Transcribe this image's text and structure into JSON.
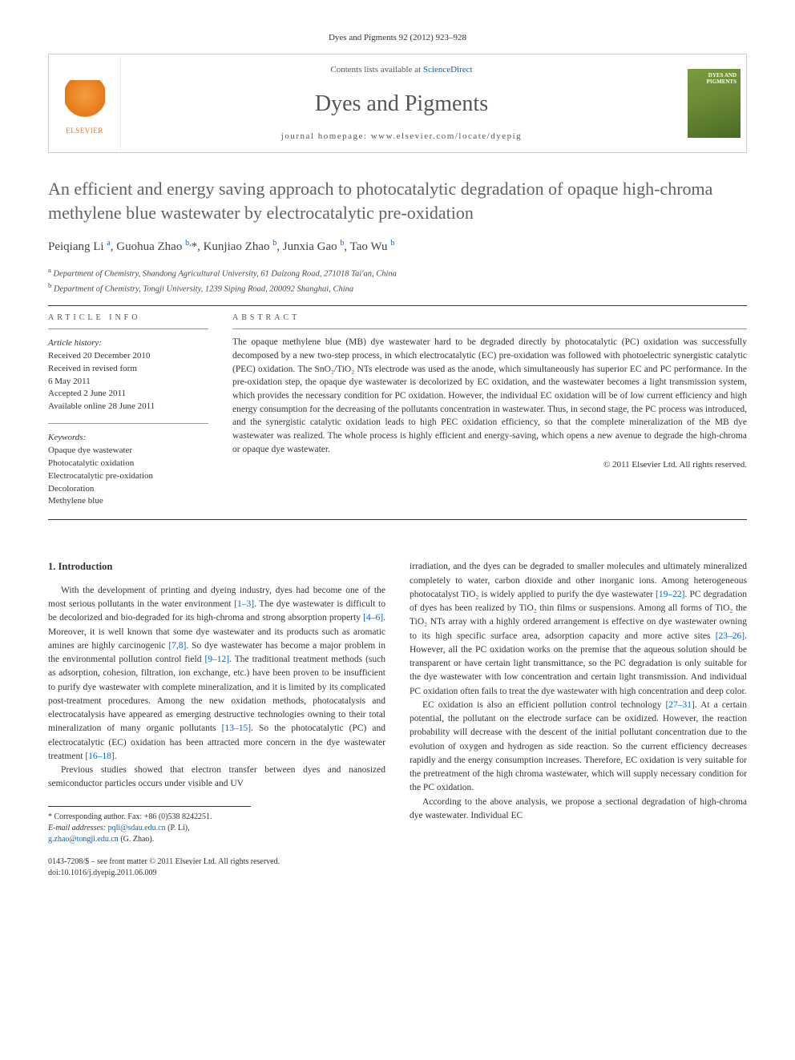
{
  "citation": "Dyes and Pigments 92 (2012) 923–928",
  "header": {
    "contents_prefix": "Contents lists available at ",
    "contents_link": "ScienceDirect",
    "journal": "Dyes and Pigments",
    "homepage": "journal homepage: www.elsevier.com/locate/dyepig",
    "publisher": "ELSEVIER",
    "cover_label": "DYES AND PIGMENTS"
  },
  "title": "An efficient and energy saving approach to photocatalytic degradation of opaque high-chroma methylene blue wastewater by electrocatalytic pre-oxidation",
  "authors_html": "Peiqiang Li <sup>a</sup>, Guohua Zhao <sup>b,</sup>*, Kunjiao Zhao <sup>b</sup>, Junxia Gao <sup>b</sup>, Tao Wu <sup>b</sup>",
  "affiliations": [
    {
      "sup": "a",
      "text": "Department of Chemistry, Shandong Agricultural University, 61 Daizong Road, 271018 Tai'an, China"
    },
    {
      "sup": "b",
      "text": "Department of Chemistry, Tongji University, 1239 Siping Road, 200092 Shanghai, China"
    }
  ],
  "info": {
    "head": "ARTICLE INFO",
    "history_label": "Article history:",
    "history": [
      "Received 20 December 2010",
      "Received in revised form",
      "6 May 2011",
      "Accepted 2 June 2011",
      "Available online 28 June 2011"
    ],
    "keywords_label": "Keywords:",
    "keywords": [
      "Opaque dye wastewater",
      "Photocatalytic oxidation",
      "Electrocatalytic pre-oxidation",
      "Decoloration",
      "Methylene blue"
    ]
  },
  "abstract": {
    "head": "ABSTRACT",
    "text": "The opaque methylene blue (MB) dye wastewater hard to be degraded directly by photocatalytic (PC) oxidation was successfully decomposed by a new two-step process, in which electrocatalytic (EC) pre-oxidation was followed with photoelectric synergistic catalytic (PEC) oxidation. The SnO₂/TiO₂ NTs electrode was used as the anode, which simultaneously has superior EC and PC performance. In the pre-oxidation step, the opaque dye wastewater is decolorized by EC oxidation, and the wastewater becomes a light transmission system, which provides the necessary condition for PC oxidation. However, the individual EC oxidation will be of low current efficiency and high energy consumption for the decreasing of the pollutants concentration in wastewater. Thus, in second stage, the PC process was introduced, and the synergistic catalytic oxidation leads to high PEC oxidation efficiency, so that the complete mineralization of the MB dye wastewater was realized. The whole process is highly efficient and energy-saving, which opens a new avenue to degrade the high-chroma or opaque dye wastewater.",
    "copyright": "© 2011 Elsevier Ltd. All rights reserved."
  },
  "body": {
    "intro_head": "1. Introduction",
    "col1_p1": "With the development of printing and dyeing industry, dyes had become one of the most serious pollutants in the water environment [1–3]. The dye wastewater is difficult to be decolorized and bio-degraded for its high-chroma and strong absorption property [4–6]. Moreover, it is well known that some dye wastewater and its products such as aromatic amines are highly carcinogenic [7,8]. So dye wastewater has become a major problem in the environmental pollution control field [9–12]. The traditional treatment methods (such as adsorption, cohesion, filtration, ion exchange, etc.) have been proven to be insufficient to purify dye wastewater with complete mineralization, and it is limited by its complicated post-treatment procedures. Among the new oxidation methods, photocatalysis and electrocatalysis have appeared as emerging destructive technologies owning to their total mineralization of many organic pollutants [13–15]. So the photocatalytic (PC) and electrocatalytic (EC) oxidation has been attracted more concern in the dye wastewater treatment [16–18].",
    "col1_p2": "Previous studies showed that electron transfer between dyes and nanosized semiconductor particles occurs under visible and UV",
    "col2_p1": "irradiation, and the dyes can be degraded to smaller molecules and ultimately mineralized completely to water, carbon dioxide and other inorganic ions. Among heterogeneous photocatalyst TiO₂ is widely applied to purify the dye wastewater [19–22]. PC degradation of dyes has been realized by TiO₂ thin films or suspensions. Among all forms of TiO₂ the TiO₂ NTs array with a highly ordered arrangement is effective on dye wastewater owning to its high specific surface area, adsorption capacity and more active sites [23–26]. However, all the PC oxidation works on the premise that the aqueous solution should be transparent or have certain light transmittance, so the PC degradation is only suitable for the dye wastewater with low concentration and certain light transmission. And individual PC oxidation often fails to treat the dye wastewater with high concentration and deep color.",
    "col2_p2": "EC oxidation is also an efficient pollution control technology [27–31]. At a certain potential, the pollutant on the electrode surface can be oxidized. However, the reaction probability will decrease with the descent of the initial pollutant concentration due to the evolution of oxygen and hydrogen as side reaction. So the current efficiency decreases rapidly and the energy consumption increases. Therefore, EC oxidation is very suitable for the pretreatment of the high chroma wastewater, which will supply necessary condition for the PC oxidation.",
    "col2_p3": "According to the above analysis, we propose a sectional degradation of high-chroma dye wastewater. Individual EC"
  },
  "footnote": {
    "corr": "* Corresponding author. Fax: +86 (0)538 8242251.",
    "emails_label": "E-mail addresses:",
    "email1": "pqli@sdau.edu.cn",
    "email1_owner": "(P. Li),",
    "email2": "g.zhao@tongji.edu.cn",
    "email2_owner": "(G. Zhao)."
  },
  "doi": {
    "line1": "0143-7208/$ – see front matter © 2011 Elsevier Ltd. All rights reserved.",
    "line2": "doi:10.1016/j.dyepig.2011.06.009"
  },
  "colors": {
    "link": "#0066cc",
    "title": "#626262",
    "rule": "#333333"
  }
}
